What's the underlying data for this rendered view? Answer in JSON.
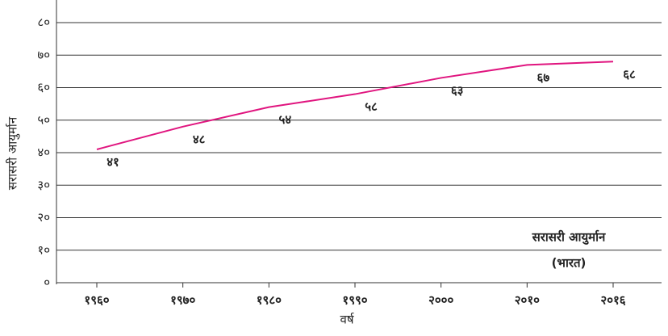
{
  "chart_data": {
    "type": "line",
    "x_label": "वर्ष",
    "y_label": "सरासरी आयुर्मान",
    "annotations": [
      "सरासरी आयुर्मान",
      "(भारत)"
    ],
    "categories": [
      "१९६०",
      "१९७०",
      "१९८०",
      "१९९०",
      "२०००",
      "२०१०",
      "२०१६"
    ],
    "values": [
      41,
      48,
      54,
      58,
      63,
      67,
      68
    ],
    "value_labels": [
      "४१",
      "४८",
      "५४",
      "५८",
      "६३",
      "६७",
      "६८"
    ],
    "color": "#e0157f",
    "ylim": [
      0,
      80
    ],
    "yticks": [
      {
        "value": 0,
        "label": "०"
      },
      {
        "value": 10,
        "label": "१०"
      },
      {
        "value": 20,
        "label": "२०"
      },
      {
        "value": 30,
        "label": "३०"
      },
      {
        "value": 40,
        "label": "४०"
      },
      {
        "value": 50,
        "label": "५०"
      },
      {
        "value": 60,
        "label": "६०"
      },
      {
        "value": 70,
        "label": "७०"
      },
      {
        "value": 80,
        "label": "८०"
      }
    ],
    "grid": true
  }
}
